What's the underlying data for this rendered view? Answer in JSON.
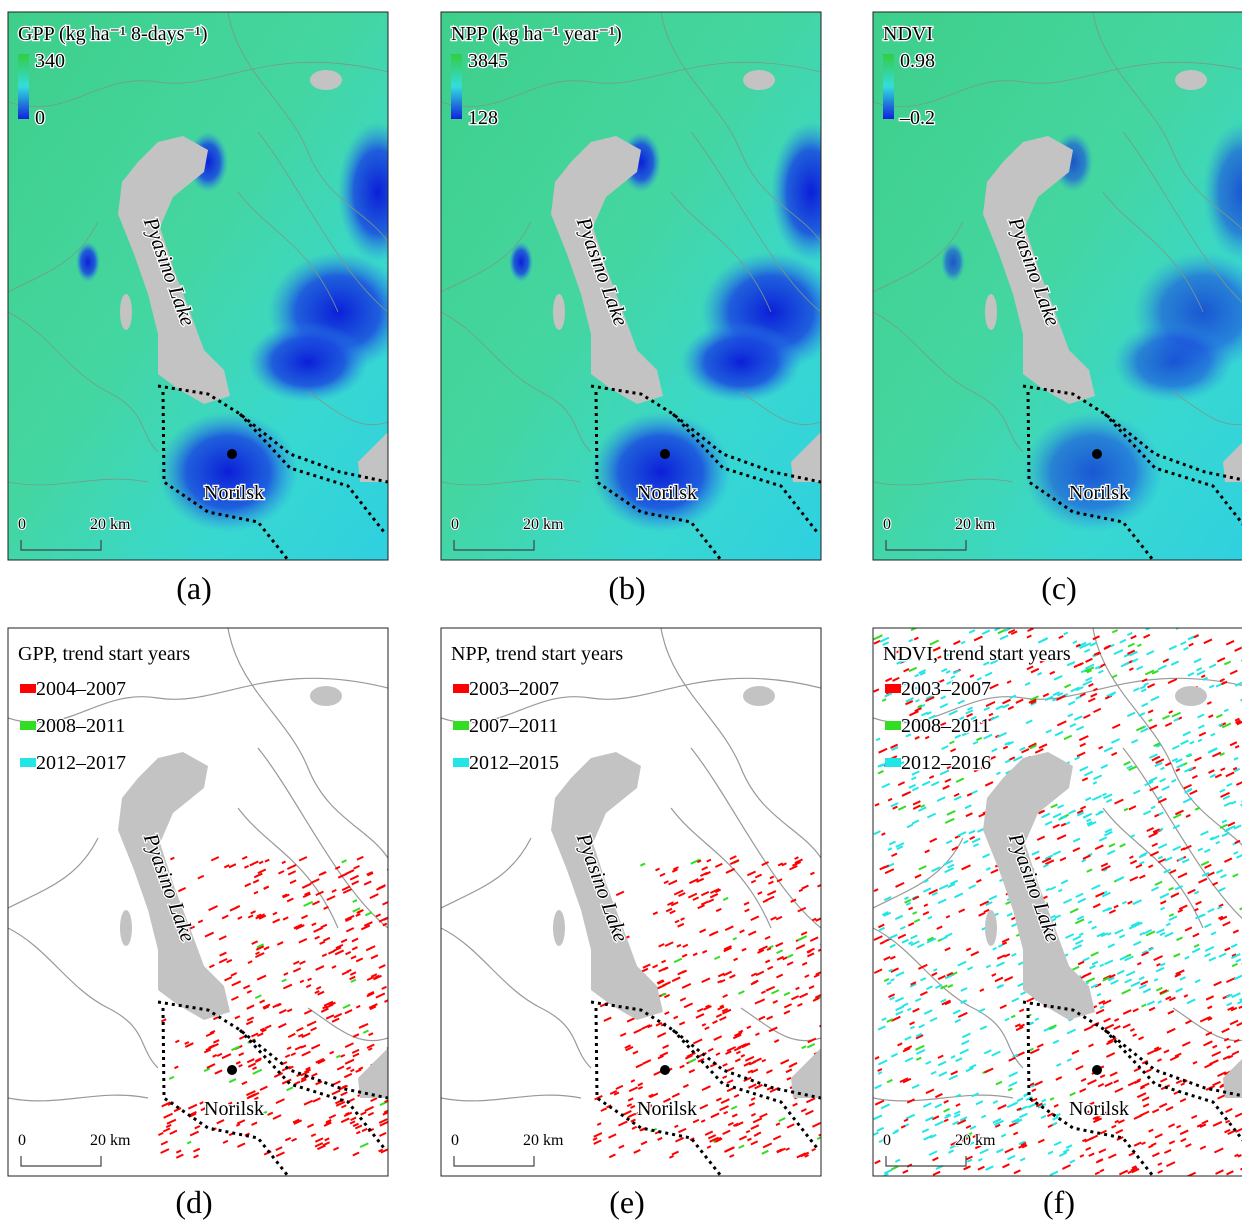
{
  "panels": [
    {
      "caption": "(a)",
      "title": "GPP (kg ha⁻¹ 8-days⁻¹)",
      "legend_max": "340",
      "legend_min": "0",
      "lake": "Pyasino Lake",
      "city": "Norilsk",
      "scale_start": "0",
      "scale_end": "20 km"
    },
    {
      "caption": "(b)",
      "title": "NPP (kg ha⁻¹ year⁻¹)",
      "legend_max": "3845",
      "legend_min": "128",
      "lake": "Pyasino Lake",
      "city": "Norilsk",
      "scale_start": "0",
      "scale_end": "20 km"
    },
    {
      "caption": "(c)",
      "title": "NDVI",
      "legend_max": "0.98",
      "legend_min": "–0.2",
      "lake": "Pyasino Lake",
      "city": "Norilsk",
      "scale_start": "0",
      "scale_end": "20 km"
    },
    {
      "caption": "(d)",
      "title": "GPP, trend start years",
      "legend": [
        {
          "label": "2004–2007",
          "color": "#ff0000"
        },
        {
          "label": "2008–2011",
          "color": "#33dd22"
        },
        {
          "label": "2012–2017",
          "color": "#22e6e6"
        }
      ],
      "lake": "Pyasino Lake",
      "city": "Norilsk",
      "scale_start": "0",
      "scale_end": "20 km"
    },
    {
      "caption": "(e)",
      "title": "NPP, trend start years",
      "legend": [
        {
          "label": "2003–2007",
          "color": "#ff0000"
        },
        {
          "label": "2007–2011",
          "color": "#33dd22"
        },
        {
          "label": "2012–2015",
          "color": "#22e6e6"
        }
      ],
      "lake": "Pyasino Lake",
      "city": "Norilsk",
      "scale_start": "0",
      "scale_end": "20 km"
    },
    {
      "caption": "(f)",
      "title": "NDVI, trend start years",
      "legend": [
        {
          "label": "2003–2007",
          "color": "#ff0000"
        },
        {
          "label": "2008–2011",
          "color": "#33dd22"
        },
        {
          "label": "2012–2016",
          "color": "#22e6e6"
        }
      ],
      "lake": "Pyasino Lake",
      "city": "Norilsk",
      "scale_start": "0",
      "scale_end": "20 km"
    }
  ]
}
